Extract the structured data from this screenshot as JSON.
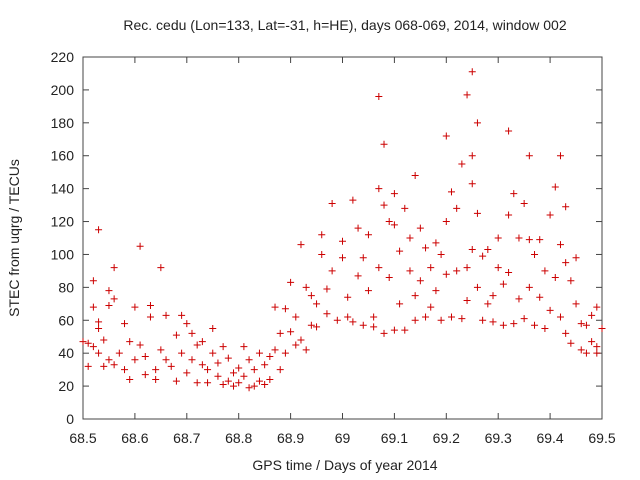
{
  "chart_data": {
    "type": "scatter",
    "title": "Rec. cedu (Lon=133, Lat=-31, h=HE), days 068-069, 2014, window 002",
    "xlabel": "GPS time / Days of year 2014",
    "ylabel": "STEC from uqrg / TECUs",
    "xlim": [
      68.5,
      69.5
    ],
    "ylim": [
      0,
      220
    ],
    "xticks": [
      "68.5",
      "68.6",
      "68.7",
      "68.8",
      "68.9",
      "69",
      "69.1",
      "69.2",
      "69.3",
      "69.4",
      "69.5"
    ],
    "yticks": [
      "0",
      "20",
      "40",
      "60",
      "80",
      "100",
      "120",
      "140",
      "160",
      "180",
      "200",
      "220"
    ],
    "marker": "+",
    "color": "#cc0000",
    "series": [
      {
        "name": "STEC",
        "points": [
          [
            68.5,
            47
          ],
          [
            68.51,
            46
          ],
          [
            68.51,
            32
          ],
          [
            68.52,
            44
          ],
          [
            68.52,
            68
          ],
          [
            68.52,
            84
          ],
          [
            68.53,
            115
          ],
          [
            68.53,
            59
          ],
          [
            68.53,
            55
          ],
          [
            68.53,
            40
          ],
          [
            68.54,
            32
          ],
          [
            68.54,
            48
          ],
          [
            68.55,
            69
          ],
          [
            68.55,
            78
          ],
          [
            68.55,
            36
          ],
          [
            68.56,
            73
          ],
          [
            68.56,
            92
          ],
          [
            68.56,
            33
          ],
          [
            68.57,
            40
          ],
          [
            68.58,
            58
          ],
          [
            68.58,
            30
          ],
          [
            68.59,
            47
          ],
          [
            68.59,
            24
          ],
          [
            68.6,
            68
          ],
          [
            68.6,
            36
          ],
          [
            68.61,
            105
          ],
          [
            68.61,
            45
          ],
          [
            68.62,
            27
          ],
          [
            68.62,
            38
          ],
          [
            68.63,
            62
          ],
          [
            68.63,
            69
          ],
          [
            68.64,
            30
          ],
          [
            68.64,
            24
          ],
          [
            68.65,
            42
          ],
          [
            68.65,
            92
          ],
          [
            68.66,
            36
          ],
          [
            68.66,
            63
          ],
          [
            68.67,
            32
          ],
          [
            68.68,
            51
          ],
          [
            68.68,
            23
          ],
          [
            68.69,
            63
          ],
          [
            68.69,
            40
          ],
          [
            68.7,
            58
          ],
          [
            68.7,
            28
          ],
          [
            68.71,
            52
          ],
          [
            68.71,
            36
          ],
          [
            68.72,
            45
          ],
          [
            68.72,
            22
          ],
          [
            68.73,
            33
          ],
          [
            68.73,
            47
          ],
          [
            68.74,
            30
          ],
          [
            68.74,
            22
          ],
          [
            68.75,
            55
          ],
          [
            68.75,
            40
          ],
          [
            68.76,
            26
          ],
          [
            68.76,
            34
          ],
          [
            68.77,
            21
          ],
          [
            68.77,
            44
          ],
          [
            68.78,
            23
          ],
          [
            68.78,
            37
          ],
          [
            68.79,
            28
          ],
          [
            68.79,
            20
          ],
          [
            68.8,
            31
          ],
          [
            68.8,
            22
          ],
          [
            68.81,
            44
          ],
          [
            68.81,
            26
          ],
          [
            68.82,
            19
          ],
          [
            68.82,
            36
          ],
          [
            68.83,
            20
          ],
          [
            68.83,
            30
          ],
          [
            68.84,
            23
          ],
          [
            68.84,
            40
          ],
          [
            68.85,
            21
          ],
          [
            68.85,
            33
          ],
          [
            68.86,
            38
          ],
          [
            68.86,
            24
          ],
          [
            68.87,
            68
          ],
          [
            68.87,
            42
          ],
          [
            68.88,
            52
          ],
          [
            68.88,
            30
          ],
          [
            68.89,
            67
          ],
          [
            68.89,
            40
          ],
          [
            68.9,
            83
          ],
          [
            68.9,
            53
          ],
          [
            68.91,
            62
          ],
          [
            68.91,
            45
          ],
          [
            68.92,
            106
          ],
          [
            68.92,
            48
          ],
          [
            68.93,
            80
          ],
          [
            68.93,
            42
          ],
          [
            68.94,
            75
          ],
          [
            68.94,
            57
          ],
          [
            68.95,
            70
          ],
          [
            68.95,
            56
          ],
          [
            68.96,
            112
          ],
          [
            68.96,
            100
          ],
          [
            68.97,
            79
          ],
          [
            68.97,
            64
          ],
          [
            68.98,
            131
          ],
          [
            68.98,
            90
          ],
          [
            68.99,
            60
          ],
          [
            69.0,
            108
          ],
          [
            69.0,
            98
          ],
          [
            69.01,
            74
          ],
          [
            69.01,
            62
          ],
          [
            69.02,
            133
          ],
          [
            69.02,
            59
          ],
          [
            69.03,
            116
          ],
          [
            69.03,
            87
          ],
          [
            69.04,
            98
          ],
          [
            69.04,
            57
          ],
          [
            69.05,
            112
          ],
          [
            69.05,
            78
          ],
          [
            69.06,
            62
          ],
          [
            69.06,
            56
          ],
          [
            69.07,
            196
          ],
          [
            69.07,
            140
          ],
          [
            69.07,
            92
          ],
          [
            69.08,
            130
          ],
          [
            69.08,
            167
          ],
          [
            69.08,
            52
          ],
          [
            69.09,
            120
          ],
          [
            69.09,
            86
          ],
          [
            69.1,
            137
          ],
          [
            69.1,
            54
          ],
          [
            69.1,
            118
          ],
          [
            69.11,
            70
          ],
          [
            69.11,
            102
          ],
          [
            69.12,
            128
          ],
          [
            69.12,
            54
          ],
          [
            69.13,
            90
          ],
          [
            69.13,
            110
          ],
          [
            69.14,
            148
          ],
          [
            69.14,
            60
          ],
          [
            69.14,
            75
          ],
          [
            69.15,
            116
          ],
          [
            69.15,
            84
          ],
          [
            69.16,
            62
          ],
          [
            69.16,
            104
          ],
          [
            69.17,
            92
          ],
          [
            69.17,
            68
          ],
          [
            69.18,
            107
          ],
          [
            69.18,
            78
          ],
          [
            69.19,
            60
          ],
          [
            69.19,
            100
          ],
          [
            69.2,
            172
          ],
          [
            69.2,
            120
          ],
          [
            69.2,
            88
          ],
          [
            69.21,
            138
          ],
          [
            69.21,
            62
          ],
          [
            69.22,
            90
          ],
          [
            69.22,
            128
          ],
          [
            69.23,
            61
          ],
          [
            69.23,
            155
          ],
          [
            69.24,
            197
          ],
          [
            69.24,
            92
          ],
          [
            69.24,
            72
          ],
          [
            69.25,
            211
          ],
          [
            69.25,
            160
          ],
          [
            69.25,
            143
          ],
          [
            69.25,
            103
          ],
          [
            69.26,
            180
          ],
          [
            69.26,
            125
          ],
          [
            69.26,
            80
          ],
          [
            69.27,
            99
          ],
          [
            69.27,
            60
          ],
          [
            69.28,
            103
          ],
          [
            69.28,
            70
          ],
          [
            69.29,
            75
          ],
          [
            69.29,
            59
          ],
          [
            69.3,
            92
          ],
          [
            69.3,
            110
          ],
          [
            69.31,
            82
          ],
          [
            69.31,
            57
          ],
          [
            69.32,
            175
          ],
          [
            69.32,
            124
          ],
          [
            69.32,
            89
          ],
          [
            69.33,
            137
          ],
          [
            69.33,
            58
          ],
          [
            69.34,
            110
          ],
          [
            69.34,
            73
          ],
          [
            69.35,
            131
          ],
          [
            69.35,
            61
          ],
          [
            69.36,
            160
          ],
          [
            69.36,
            109
          ],
          [
            69.36,
            80
          ],
          [
            69.37,
            100
          ],
          [
            69.37,
            57
          ],
          [
            69.38,
            109
          ],
          [
            69.38,
            74
          ],
          [
            69.39,
            90
          ],
          [
            69.39,
            55
          ],
          [
            69.4,
            124
          ],
          [
            69.4,
            66
          ],
          [
            69.41,
            141
          ],
          [
            69.41,
            86
          ],
          [
            69.42,
            106
          ],
          [
            69.42,
            62
          ],
          [
            69.42,
            160
          ],
          [
            69.43,
            129
          ],
          [
            69.43,
            95
          ],
          [
            69.43,
            52
          ],
          [
            69.44,
            84
          ],
          [
            69.44,
            46
          ],
          [
            69.45,
            98
          ],
          [
            69.45,
            70
          ],
          [
            69.46,
            58
          ],
          [
            69.46,
            42
          ],
          [
            69.47,
            57
          ],
          [
            69.47,
            40
          ],
          [
            69.48,
            63
          ],
          [
            69.48,
            47
          ],
          [
            69.49,
            68
          ],
          [
            69.49,
            44
          ],
          [
            69.49,
            40
          ],
          [
            69.5,
            55
          ]
        ]
      }
    ]
  }
}
